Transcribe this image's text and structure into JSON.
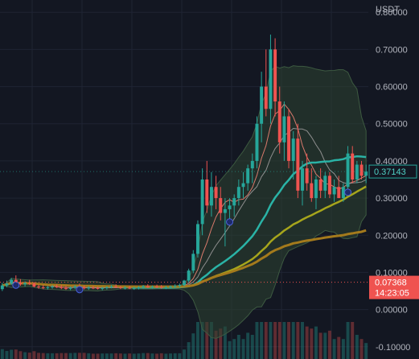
{
  "colors": {
    "background": "#131722",
    "grid": "#1f2433",
    "axis_text": "#b2b5be",
    "up": "#26a69a",
    "down": "#ef5350",
    "teal": "#26a69a",
    "teal_ma": "#2ab3a6",
    "olive_ma": "#a6a51c",
    "brown_ma": "#a47a1c",
    "bb_fill": "#2e4432",
    "price_tag_bg": "#ef5350",
    "current_tag_border": "#26a69a"
  },
  "chart_data": {
    "type": "candlestick",
    "currency": "USDT",
    "ylim": [
      -0.12,
      0.82
    ],
    "y_ticks": [
      "0.80000",
      "0.70000",
      "0.60000",
      "0.50000",
      "0.40000",
      "0.30000",
      "0.20000",
      "0.10000",
      "0.00000",
      "-0.10000"
    ],
    "y_tick_values": [
      0.8,
      0.7,
      0.6,
      0.5,
      0.4,
      0.3,
      0.2,
      0.1,
      0.0,
      -0.1
    ],
    "ohlc": [
      [
        0.055,
        0.072,
        0.05,
        0.065
      ],
      [
        0.065,
        0.078,
        0.06,
        0.07
      ],
      [
        0.07,
        0.085,
        0.066,
        0.08
      ],
      [
        0.08,
        0.092,
        0.07,
        0.072
      ],
      [
        0.072,
        0.082,
        0.064,
        0.068
      ],
      [
        0.068,
        0.076,
        0.062,
        0.071
      ],
      [
        0.071,
        0.08,
        0.066,
        0.07
      ],
      [
        0.07,
        0.074,
        0.06,
        0.062
      ],
      [
        0.062,
        0.068,
        0.056,
        0.06
      ],
      [
        0.06,
        0.066,
        0.055,
        0.058
      ],
      [
        0.058,
        0.064,
        0.054,
        0.06
      ],
      [
        0.06,
        0.066,
        0.056,
        0.062
      ],
      [
        0.062,
        0.068,
        0.058,
        0.06
      ],
      [
        0.06,
        0.066,
        0.055,
        0.058
      ],
      [
        0.058,
        0.064,
        0.053,
        0.056
      ],
      [
        0.056,
        0.062,
        0.052,
        0.059
      ],
      [
        0.059,
        0.066,
        0.055,
        0.062
      ],
      [
        0.062,
        0.07,
        0.058,
        0.06
      ],
      [
        0.06,
        0.065,
        0.054,
        0.057
      ],
      [
        0.057,
        0.063,
        0.053,
        0.059
      ],
      [
        0.059,
        0.064,
        0.055,
        0.058
      ],
      [
        0.058,
        0.062,
        0.054,
        0.056
      ],
      [
        0.056,
        0.061,
        0.052,
        0.058
      ],
      [
        0.058,
        0.063,
        0.054,
        0.06
      ],
      [
        0.06,
        0.066,
        0.057,
        0.062
      ],
      [
        0.062,
        0.068,
        0.058,
        0.06
      ],
      [
        0.06,
        0.064,
        0.055,
        0.058
      ],
      [
        0.058,
        0.063,
        0.054,
        0.059
      ],
      [
        0.059,
        0.064,
        0.055,
        0.057
      ],
      [
        0.057,
        0.062,
        0.053,
        0.058
      ],
      [
        0.058,
        0.063,
        0.054,
        0.06
      ],
      [
        0.06,
        0.066,
        0.056,
        0.063
      ],
      [
        0.063,
        0.068,
        0.058,
        0.06
      ],
      [
        0.06,
        0.065,
        0.056,
        0.062
      ],
      [
        0.062,
        0.067,
        0.058,
        0.061
      ],
      [
        0.061,
        0.066,
        0.056,
        0.059
      ],
      [
        0.059,
        0.064,
        0.055,
        0.06
      ],
      [
        0.06,
        0.065,
        0.056,
        0.062
      ],
      [
        0.062,
        0.068,
        0.058,
        0.064
      ],
      [
        0.064,
        0.07,
        0.06,
        0.066
      ],
      [
        0.066,
        0.08,
        0.062,
        0.078
      ],
      [
        0.078,
        0.11,
        0.072,
        0.105
      ],
      [
        0.105,
        0.16,
        0.098,
        0.15
      ],
      [
        0.15,
        0.24,
        0.14,
        0.23
      ],
      [
        0.23,
        0.38,
        0.2,
        0.35
      ],
      [
        0.35,
        0.4,
        0.26,
        0.28
      ],
      [
        0.28,
        0.37,
        0.25,
        0.33
      ],
      [
        0.33,
        0.36,
        0.27,
        0.3
      ],
      [
        0.3,
        0.33,
        0.24,
        0.26
      ],
      [
        0.26,
        0.3,
        0.17,
        0.27
      ],
      [
        0.27,
        0.3,
        0.24,
        0.28
      ],
      [
        0.28,
        0.31,
        0.25,
        0.3
      ],
      [
        0.3,
        0.35,
        0.28,
        0.33
      ],
      [
        0.33,
        0.37,
        0.3,
        0.34
      ],
      [
        0.34,
        0.39,
        0.32,
        0.38
      ],
      [
        0.38,
        0.42,
        0.34,
        0.4
      ],
      [
        0.4,
        0.52,
        0.38,
        0.5
      ],
      [
        0.5,
        0.64,
        0.45,
        0.6
      ],
      [
        0.6,
        0.7,
        0.52,
        0.54
      ],
      [
        0.54,
        0.74,
        0.5,
        0.7
      ],
      [
        0.7,
        0.73,
        0.52,
        0.56
      ],
      [
        0.56,
        0.6,
        0.42,
        0.45
      ],
      [
        0.45,
        0.56,
        0.4,
        0.52
      ],
      [
        0.52,
        0.54,
        0.38,
        0.4
      ],
      [
        0.4,
        0.48,
        0.35,
        0.46
      ],
      [
        0.46,
        0.5,
        0.3,
        0.32
      ],
      [
        0.32,
        0.4,
        0.28,
        0.38
      ],
      [
        0.38,
        0.42,
        0.32,
        0.34
      ],
      [
        0.34,
        0.38,
        0.29,
        0.3
      ],
      [
        0.3,
        0.36,
        0.27,
        0.35
      ],
      [
        0.35,
        0.38,
        0.3,
        0.32
      ],
      [
        0.32,
        0.37,
        0.3,
        0.36
      ],
      [
        0.36,
        0.37,
        0.3,
        0.31
      ],
      [
        0.31,
        0.35,
        0.29,
        0.33
      ],
      [
        0.33,
        0.36,
        0.3,
        0.3
      ],
      [
        0.3,
        0.34,
        0.29,
        0.33
      ],
      [
        0.33,
        0.44,
        0.32,
        0.42
      ],
      [
        0.42,
        0.44,
        0.34,
        0.35
      ],
      [
        0.35,
        0.4,
        0.34,
        0.39
      ],
      [
        0.39,
        0.4,
        0.35,
        0.36
      ],
      [
        0.36,
        0.39,
        0.34,
        0.371
      ]
    ],
    "price_tags": [
      {
        "value": 0.07368,
        "label": "0.07368",
        "countdown": "14:23:05",
        "style": "down"
      },
      {
        "value": 0.37143,
        "label": "0.37143",
        "style": "current"
      }
    ]
  },
  "currency_label": "USDT"
}
